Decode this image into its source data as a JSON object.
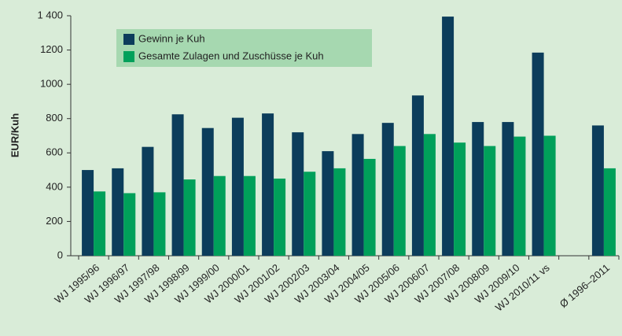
{
  "chart_data": {
    "type": "bar",
    "y_label": "EUR/Kuh",
    "categories": [
      "WJ 1995/96",
      "WJ 1996/97",
      "WJ 1997/98",
      "WJ 1998/99",
      "WJ 1999/00",
      "WJ 2000/01",
      "WJ 2001/02",
      "WJ 2002/03",
      "WJ 2003/04",
      "WJ 2004/05",
      "WJ 2005/06",
      "WJ 2006/07",
      "WJ 2007/08",
      "WJ 2008/09",
      "WJ 2009/10",
      "WJ 2010/11 vs",
      null,
      "Ø 1996–2011"
    ],
    "series": [
      {
        "name": "Gewinn je Kuh",
        "color": "#0c3d5b",
        "values": [
          500,
          510,
          635,
          825,
          745,
          805,
          830,
          720,
          610,
          710,
          775,
          935,
          1395,
          780,
          780,
          1185,
          null,
          760
        ]
      },
      {
        "name": "Gesamte Zulagen und Zuschüsse je Kuh",
        "color": "#00a05a",
        "values": [
          375,
          365,
          370,
          445,
          465,
          465,
          450,
          490,
          510,
          565,
          640,
          710,
          660,
          640,
          695,
          700,
          null,
          510
        ]
      }
    ],
    "ylim": [
      0,
      1400
    ],
    "yticks": [
      0,
      200,
      400,
      600,
      800,
      1000,
      1200,
      {
        "value": 1400,
        "label": "1 400"
      }
    ],
    "grid": false
  }
}
